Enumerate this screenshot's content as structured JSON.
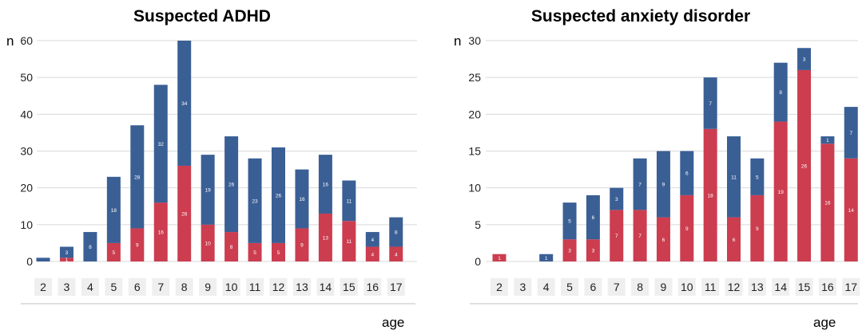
{
  "chart_data": [
    {
      "type": "bar",
      "stacked": true,
      "title": "Suspected ADHD",
      "ylabel": "n",
      "xlabel": "age",
      "ylim": [
        0,
        60
      ],
      "yticks": [
        0,
        10,
        20,
        30,
        40,
        50,
        60
      ],
      "categories": [
        "2",
        "3",
        "4",
        "5",
        "6",
        "7",
        "8",
        "9",
        "10",
        "11",
        "12",
        "13",
        "14",
        "15",
        "16",
        "17"
      ],
      "series": [
        {
          "name": "red",
          "color": "#cc3d4f",
          "values": [
            0,
            1,
            0,
            5,
            9,
            16,
            26,
            10,
            8,
            5,
            5,
            9,
            13,
            11,
            4,
            4
          ],
          "labels": [
            "",
            "1",
            "",
            "5",
            "9",
            "16",
            "26",
            "10",
            "8",
            "5",
            "5",
            "9",
            "13",
            "11",
            "4",
            "4"
          ]
        },
        {
          "name": "blue",
          "color": "#3a5f95",
          "values": [
            1,
            3,
            8,
            18,
            28,
            32,
            34,
            19,
            26,
            23,
            26,
            16,
            16,
            11,
            4,
            8
          ],
          "labels": [
            "",
            "3",
            "8",
            "18",
            "28",
            "32",
            "34",
            "19",
            "26",
            "23",
            "26",
            "16",
            "16",
            "11",
            "4",
            "8"
          ]
        }
      ]
    },
    {
      "type": "bar",
      "stacked": true,
      "title": "Suspected anxiety disorder",
      "ylabel": "n",
      "xlabel": "age",
      "ylim": [
        0,
        30
      ],
      "yticks": [
        0,
        5,
        10,
        15,
        20,
        25,
        30
      ],
      "categories": [
        "2",
        "3",
        "4",
        "5",
        "6",
        "7",
        "8",
        "9",
        "10",
        "11",
        "12",
        "13",
        "14",
        "15",
        "16",
        "17"
      ],
      "series": [
        {
          "name": "red",
          "color": "#cc3d4f",
          "values": [
            1,
            0,
            0,
            3,
            3,
            7,
            7,
            6,
            9,
            18,
            6,
            9,
            19,
            26,
            16,
            14
          ],
          "labels": [
            "1",
            "",
            "",
            "3",
            "3",
            "7",
            "7",
            "6",
            "9",
            "18",
            "6",
            "9",
            "19",
            "26",
            "16",
            "14"
          ]
        },
        {
          "name": "blue",
          "color": "#3a5f95",
          "values": [
            0,
            0,
            1,
            5,
            6,
            3,
            7,
            9,
            6,
            7,
            11,
            5,
            8,
            3,
            1,
            7
          ],
          "labels": [
            "",
            "",
            "1",
            "5",
            "6",
            "3",
            "7",
            "9",
            "6",
            "7",
            "11",
            "5",
            "8",
            "3",
            "1",
            "7"
          ]
        }
      ]
    }
  ]
}
